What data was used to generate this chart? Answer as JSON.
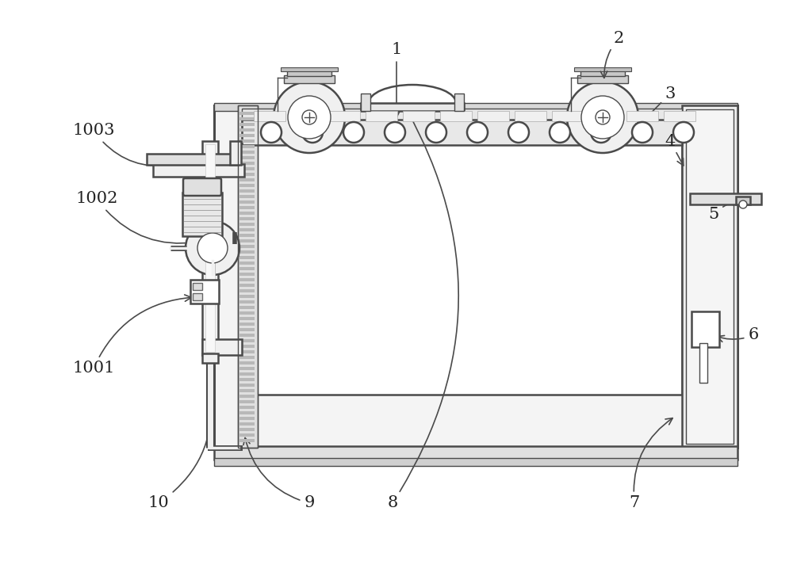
{
  "bg_color": "#ffffff",
  "line_color": "#4a4a4a",
  "label_color": "#222222",
  "figsize": [
    10.0,
    7.13
  ],
  "dpi": 100
}
